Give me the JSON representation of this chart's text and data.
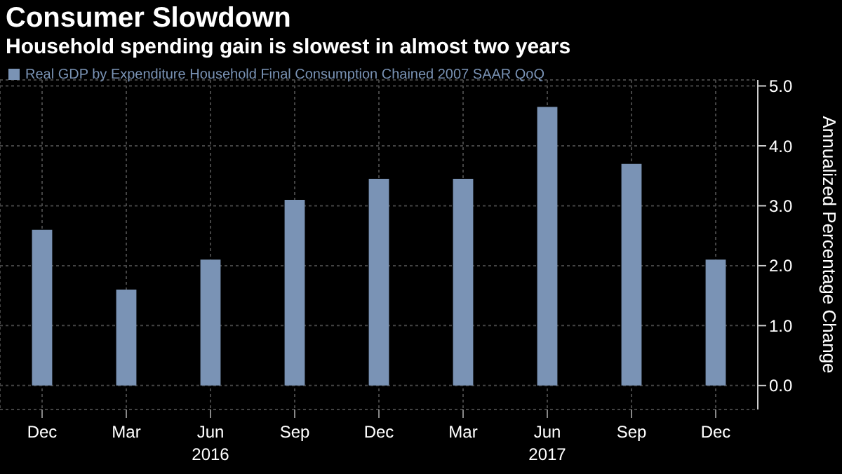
{
  "chart_data": {
    "type": "bar",
    "title": "Consumer Slowdown",
    "subtitle": "Household spending gain is slowest in almost two years",
    "ylabel": "Annualized Percentage Change",
    "categories": [
      "Dec",
      "Mar",
      "Jun 2016",
      "Sep",
      "Dec",
      "Mar",
      "Jun 2017",
      "Sep",
      "Dec"
    ],
    "series": [
      {
        "name": "Real GDP by Expenditure Household Final Consumption Chained 2007 SAAR QoQ",
        "color": "#7a93b5",
        "values": [
          2.6,
          1.6,
          2.1,
          3.1,
          3.45,
          3.45,
          4.65,
          3.7,
          2.1
        ]
      }
    ],
    "ylim": [
      -0.4,
      5.1
    ],
    "yticks": [
      {
        "value": 0,
        "label": "0.0"
      },
      {
        "value": 1,
        "label": "1.0"
      },
      {
        "value": 2,
        "label": "2.0"
      },
      {
        "value": 3,
        "label": "3.0"
      },
      {
        "value": 4,
        "label": "4.0"
      },
      {
        "value": 5,
        "label": "5.0"
      }
    ],
    "grid": true,
    "legend": "top left"
  }
}
